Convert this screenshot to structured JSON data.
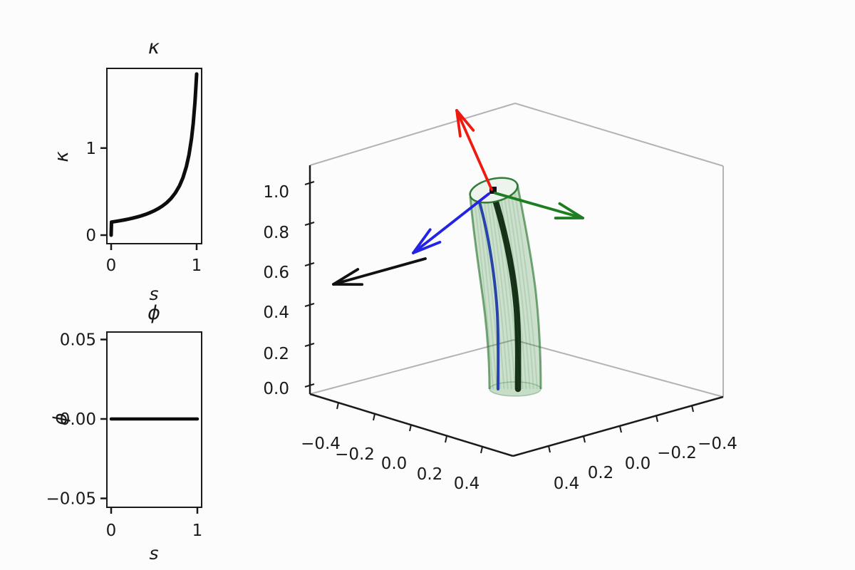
{
  "figure": {
    "background": "#fcfcfc",
    "text_color": "#1a1a1a",
    "spine_color": "#1a1a1a",
    "pane_edge_color": "#b3b3b3"
  },
  "chart_data": [
    {
      "id": "kappa",
      "type": "line",
      "title": "κ",
      "xlabel": "s",
      "ylabel": "κ",
      "line_color": "#0d0d0d",
      "xlim": [
        -0.05,
        1.05
      ],
      "ylim": [
        -0.1,
        1.93
      ],
      "xticks": [
        {
          "v": 0,
          "l": "0"
        },
        {
          "v": 1,
          "l": "1"
        }
      ],
      "yticks": [
        {
          "v": 0,
          "l": "0"
        },
        {
          "v": 1,
          "l": "1"
        }
      ],
      "x": [
        0,
        0.004,
        0.05,
        0.1,
        0.15,
        0.2,
        0.25,
        0.3,
        0.35,
        0.4,
        0.45,
        0.5,
        0.55,
        0.6,
        0.65,
        0.7,
        0.75,
        0.8,
        0.84,
        0.88,
        0.91,
        0.94,
        0.96,
        0.98,
        0.99,
        1.0
      ],
      "y": [
        0,
        0.15,
        0.157,
        0.165,
        0.174,
        0.184,
        0.195,
        0.207,
        0.221,
        0.237,
        0.256,
        0.278,
        0.304,
        0.335,
        0.373,
        0.421,
        0.484,
        0.568,
        0.66,
        0.788,
        0.921,
        1.109,
        1.284,
        1.524,
        1.682,
        1.85
      ]
    },
    {
      "id": "phi",
      "type": "line",
      "title": "ϕ",
      "xlabel": "s",
      "ylabel": "ϕ",
      "line_color": "#0d0d0d",
      "xlim": [
        -0.05,
        1.05
      ],
      "ylim": [
        -0.056,
        0.056
      ],
      "xticks": [
        {
          "v": 0,
          "l": "0"
        },
        {
          "v": 1,
          "l": "1"
        }
      ],
      "yticks": [
        {
          "v": 0.05,
          "l": "0.05"
        },
        {
          "v": 0,
          "l": "0.00"
        },
        {
          "v": -0.05,
          "l": "−0.05"
        }
      ],
      "x": [
        0,
        1
      ],
      "y": [
        0,
        0
      ]
    },
    {
      "id": "rod3d",
      "type": "3d-tube",
      "xlim": [
        -0.5,
        0.5
      ],
      "ylim": [
        -0.5,
        0.5
      ],
      "zlim": [
        0,
        1
      ],
      "zticks": [
        "0.0",
        "0.2",
        "0.4",
        "0.6",
        "0.8",
        "1.0"
      ],
      "xticks": [
        "−0.4",
        "−0.2",
        "0.0",
        "0.2",
        "0.4"
      ],
      "yticks": [
        "0.4",
        "0.2",
        "0.0",
        "−0.2",
        "−0.4"
      ],
      "tube_fill": "rgba(58,140,62,0.25)",
      "tube_edge": "rgba(30,110,35,0.6)",
      "centerline_color": "#0a0f0a",
      "edge_curve_color": "#2328d8",
      "arrows": [
        {
          "name": "director-arrow-red",
          "color": "#ee1a0f",
          "from": [
            690,
            266
          ],
          "to": [
            641,
            155
          ]
        },
        {
          "name": "director-arrow-green",
          "color": "#1e7d23",
          "from": [
            695,
            271
          ],
          "to": [
            818,
            306
          ]
        },
        {
          "name": "director-arrow-blue",
          "color": "#2323e6",
          "from": [
            686,
            272
          ],
          "to": [
            580,
            355
          ]
        },
        {
          "name": "director-arrow-black",
          "color": "#111111",
          "from": [
            597,
            363
          ],
          "to": [
            468,
            399
          ]
        }
      ]
    }
  ]
}
